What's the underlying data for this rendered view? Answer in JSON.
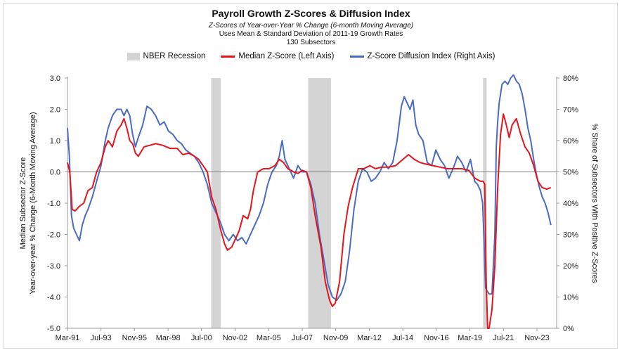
{
  "chart_data": {
    "type": "line",
    "title": "Payroll Growth Z-Scores & Diffusion Index",
    "subtitle": "Z-Scores of Year-over-Year % Change (6-month Moving Average)",
    "subtitle2": "Uses Mean & Standard Deviation of 2011-19 Growth Rates",
    "subtitle3": "130 Subsectors",
    "ylabel_left_line1": "Median Subsector Z-Score",
    "ylabel_left_line2": "Year-over-year % Change (6-Month Moving Average)",
    "ylabel_right": "% Share of Subsectors With Positive Z-Scores",
    "legend": {
      "recession": "NBER Recession",
      "median": "Median Z-Score (Left Axis)",
      "diffusion": "Z-Score Diffusion Index (Right Axis)"
    },
    "colors": {
      "median": "#e8141b",
      "diffusion": "#4a6bc4",
      "recession": "#d4d4d4",
      "zero_line": "#7f7f7f",
      "axis": "#9a9a9a"
    },
    "x_range": [
      1991.17,
      2025.2
    ],
    "x_ticks": [
      {
        "label": "Mar-91",
        "x": 1991.17
      },
      {
        "label": "Jul-93",
        "x": 1993.5
      },
      {
        "label": "Nov-95",
        "x": 1995.83
      },
      {
        "label": "Mar-98",
        "x": 1998.17
      },
      {
        "label": "Jul-00",
        "x": 2000.5
      },
      {
        "label": "Nov-02",
        "x": 2002.83
      },
      {
        "label": "Mar-05",
        "x": 2005.17
      },
      {
        "label": "Jul-07",
        "x": 2007.5
      },
      {
        "label": "Nov-09",
        "x": 2009.83
      },
      {
        "label": "Mar-12",
        "x": 2012.17
      },
      {
        "label": "Jul-14",
        "x": 2014.5
      },
      {
        "label": "Nov-16",
        "x": 2016.83
      },
      {
        "label": "Mar-19",
        "x": 2019.17
      },
      {
        "label": "Jul-21",
        "x": 2021.5
      },
      {
        "label": "Nov-23",
        "x": 2023.83
      }
    ],
    "y_left": {
      "min": -5,
      "max": 3,
      "ticks": [
        "3.0",
        "2.0",
        "1.0",
        "0.0",
        "-1.0",
        "-2.0",
        "-3.0",
        "-4.0",
        "-5.0"
      ]
    },
    "y_right": {
      "min": 0,
      "max": 80,
      "ticks": [
        "80%",
        "70%",
        "60%",
        "50%",
        "40%",
        "30%",
        "20%",
        "10%",
        "0%"
      ]
    },
    "recessions": [
      [
        2001.17,
        2001.83
      ],
      [
        2007.92,
        2009.5
      ],
      [
        2020.08,
        2020.33
      ]
    ],
    "series": [
      {
        "name": "Median Z-Score (Left Axis)",
        "axis": "left",
        "x": [
          1991.17,
          1991.33,
          1991.5,
          1991.7,
          1992.0,
          1992.3,
          1992.6,
          1992.9,
          1993.2,
          1993.5,
          1993.8,
          1994.0,
          1994.3,
          1994.6,
          1994.9,
          1995.1,
          1995.3,
          1995.5,
          1995.7,
          1995.9,
          1996.1,
          1996.5,
          1996.9,
          1997.3,
          1997.8,
          1998.3,
          1998.8,
          1999.2,
          1999.6,
          2000.0,
          2000.3,
          2000.6,
          2000.9,
          2001.2,
          2001.5,
          2001.8,
          2002.1,
          2002.3,
          2002.6,
          2002.9,
          2003.1,
          2003.4,
          2003.7,
          2003.9,
          2004.1,
          2004.4,
          2004.8,
          2005.2,
          2005.6,
          2005.9,
          2006.2,
          2006.5,
          2006.9,
          2007.2,
          2007.5,
          2007.8,
          2008.1,
          2008.4,
          2008.8,
          2009.1,
          2009.4,
          2009.6,
          2009.8,
          2010.1,
          2010.4,
          2010.7,
          2011.0,
          2011.4,
          2011.8,
          2012.2,
          2012.6,
          2013.0,
          2013.5,
          2014.0,
          2014.5,
          2014.9,
          2015.3,
          2015.7,
          2016.1,
          2016.6,
          2017.1,
          2017.6,
          2018.1,
          2018.6,
          2019.1,
          2019.5,
          2019.9,
          2020.1,
          2020.2,
          2020.3,
          2020.4,
          2020.5,
          2020.7,
          2020.9,
          2021.1,
          2021.3,
          2021.5,
          2021.7,
          2021.9,
          2022.1,
          2022.4,
          2022.7,
          2023.0,
          2023.3,
          2023.6,
          2023.9,
          2024.2,
          2024.5,
          2024.8
        ],
        "values": [
          0.3,
          0.0,
          -1.2,
          -1.25,
          -1.1,
          -1.0,
          -0.6,
          -0.5,
          0.0,
          0.3,
          0.8,
          1.0,
          0.8,
          1.3,
          1.5,
          1.7,
          1.4,
          1.0,
          0.9,
          0.6,
          0.5,
          0.8,
          0.85,
          0.9,
          0.85,
          0.75,
          0.75,
          0.55,
          0.6,
          0.5,
          0.4,
          0.2,
          0.0,
          -0.8,
          -1.2,
          -1.8,
          -2.3,
          -2.5,
          -2.4,
          -2.1,
          -1.9,
          -1.4,
          -1.5,
          -1.2,
          -0.6,
          0.0,
          0.1,
          0.1,
          0.2,
          0.4,
          0.3,
          0.1,
          0.0,
          -0.05,
          0.05,
          0.0,
          -0.5,
          -1.4,
          -2.4,
          -3.5,
          -4.1,
          -4.3,
          -4.2,
          -3.5,
          -2.0,
          -1.1,
          -0.5,
          0.1,
          0.1,
          0.2,
          0.1,
          0.15,
          0.15,
          0.2,
          0.4,
          0.55,
          0.4,
          0.3,
          0.25,
          0.2,
          0.15,
          0.1,
          0.1,
          0.1,
          0.05,
          -0.2,
          -0.3,
          -0.3,
          -0.4,
          -3.5,
          -5.0,
          -5.0,
          -4.4,
          -3.0,
          -0.5,
          1.2,
          1.85,
          1.5,
          1.1,
          1.5,
          1.7,
          1.2,
          0.8,
          0.6,
          0.2,
          -0.3,
          -0.5,
          -0.55,
          -0.5
        ]
      },
      {
        "name": "Z-Score Diffusion Index (Right Axis)",
        "axis": "right",
        "x": [
          1991.17,
          1991.3,
          1991.45,
          1991.6,
          1991.8,
          1992.0,
          1992.2,
          1992.4,
          1992.6,
          1992.9,
          1993.2,
          1993.5,
          1993.8,
          1994.0,
          1994.3,
          1994.6,
          1994.9,
          1995.1,
          1995.3,
          1995.5,
          1995.7,
          1995.9,
          1996.1,
          1996.4,
          1996.7,
          1997.0,
          1997.3,
          1997.6,
          1997.9,
          1998.2,
          1998.5,
          1998.8,
          1999.1,
          1999.4,
          1999.7,
          2000.0,
          2000.3,
          2000.6,
          2000.9,
          2001.2,
          2001.5,
          2001.8,
          2002.1,
          2002.4,
          2002.7,
          2003.0,
          2003.3,
          2003.6,
          2003.9,
          2004.2,
          2004.5,
          2004.8,
          2005.1,
          2005.4,
          2005.7,
          2005.9,
          2006.1,
          2006.3,
          2006.6,
          2006.9,
          2007.2,
          2007.5,
          2007.8,
          2008.1,
          2008.4,
          2008.7,
          2009.0,
          2009.3,
          2009.6,
          2009.9,
          2010.2,
          2010.5,
          2010.8,
          2011.1,
          2011.4,
          2011.7,
          2012.0,
          2012.3,
          2012.6,
          2012.9,
          2013.2,
          2013.5,
          2013.8,
          2014.1,
          2014.4,
          2014.6,
          2014.8,
          2015.0,
          2015.2,
          2015.4,
          2015.6,
          2015.9,
          2016.2,
          2016.5,
          2016.8,
          2017.1,
          2017.4,
          2017.7,
          2018.0,
          2018.3,
          2018.6,
          2018.9,
          2019.2,
          2019.5,
          2019.7,
          2019.9,
          2020.05,
          2020.15,
          2020.25,
          2020.35,
          2020.5,
          2020.7,
          2020.9,
          2021.0,
          2021.1,
          2021.2,
          2021.4,
          2021.6,
          2021.8,
          2022.0,
          2022.2,
          2022.4,
          2022.6,
          2022.8,
          2023.0,
          2023.2,
          2023.4,
          2023.6,
          2023.8,
          2024.0,
          2024.2,
          2024.4,
          2024.6,
          2024.8
        ],
        "values": [
          64,
          55,
          36,
          32,
          30,
          28,
          33,
          36,
          38,
          42,
          47,
          52,
          60,
          64,
          68,
          70,
          70,
          68,
          70,
          68,
          62,
          58,
          61,
          65,
          71,
          70,
          68,
          65,
          66,
          63,
          62,
          60,
          59,
          57,
          56,
          55,
          53,
          50,
          46,
          40,
          37,
          34,
          30,
          28,
          30,
          28,
          29,
          27,
          30,
          33,
          36,
          40,
          46,
          50,
          52,
          55,
          60,
          54,
          51,
          48,
          52,
          50,
          50,
          46,
          40,
          30,
          22,
          14,
          10,
          9,
          11,
          15,
          25,
          38,
          47,
          51,
          50,
          47,
          48,
          50,
          53,
          51,
          53,
          60,
          71,
          74,
          72,
          70,
          73,
          65,
          62,
          60,
          53,
          52,
          57,
          54,
          52,
          48,
          51,
          55,
          53,
          50,
          54,
          47,
          46,
          44,
          40,
          28,
          13,
          12,
          11,
          11,
          30,
          58,
          66,
          72,
          78,
          79,
          78,
          80,
          81,
          79,
          78,
          75,
          70,
          64,
          60,
          54,
          49,
          45,
          42,
          40,
          37,
          33
        ]
      }
    ]
  }
}
